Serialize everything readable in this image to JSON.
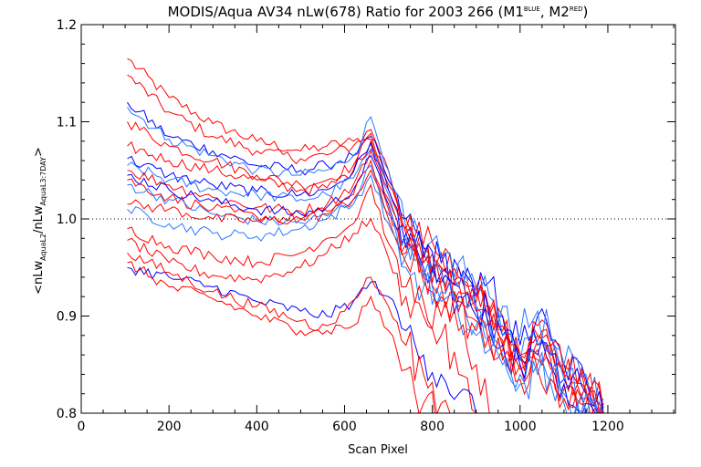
{
  "chart_data": {
    "type": "line",
    "title": {
      "main": "MODIS/Aqua AV34 nLw(678) Ratio for 2003 266 (M1",
      "sup1": "BLUE",
      "mid": ", M2",
      "sup2": "RED",
      "end": ")"
    },
    "xlabel": "Scan Pixel",
    "ylabel": {
      "open": "<nLw",
      "sub1": "AquaL2",
      "mid": "/nLw",
      "sub2": "AquaL3:7DAY",
      "close": ">"
    },
    "xlim": [
      0,
      1354
    ],
    "ylim": [
      0.8,
      1.2
    ],
    "x_ticks": [
      "0",
      "200",
      "400",
      "600",
      "800",
      "1000",
      "1200"
    ],
    "y_ticks": [
      "0.8",
      "0.9",
      "1.0",
      "1.1",
      "1.2"
    ],
    "reference_line": {
      "y": 1.0,
      "style": "dotted"
    },
    "colors": {
      "blue": "#0000ff",
      "lightblue": "#2878ff",
      "red": "#ff0000",
      "axis": "#000000"
    },
    "series": [
      {
        "color": "red",
        "x": [
          105,
          200,
          300,
          400,
          500,
          560,
          620,
          660,
          700,
          740,
          780,
          820,
          860,
          900,
          930,
          960,
          1000,
          1040,
          1070,
          1100,
          1150,
          1190
        ],
        "y": [
          1.165,
          1.125,
          1.098,
          1.08,
          1.07,
          1.075,
          1.08,
          1.082,
          1.04,
          1.0,
          0.97,
          0.965,
          0.95,
          0.93,
          0.905,
          0.87,
          0.86,
          0.88,
          0.87,
          0.84,
          0.82,
          0.8
        ]
      },
      {
        "color": "red",
        "x": [
          105,
          200,
          300,
          400,
          500,
          560,
          620,
          660,
          700,
          740,
          780,
          820,
          860,
          900,
          930,
          960,
          1000,
          1040,
          1070,
          1100,
          1150,
          1190
        ],
        "y": [
          1.148,
          1.11,
          1.085,
          1.07,
          1.062,
          1.066,
          1.075,
          1.092,
          1.05,
          0.99,
          0.975,
          0.96,
          0.94,
          0.93,
          0.91,
          0.9,
          0.86,
          0.89,
          0.88,
          0.85,
          0.83,
          0.805
        ]
      },
      {
        "color": "blue",
        "x": [
          105,
          200,
          300,
          400,
          500,
          560,
          620,
          660,
          700,
          740,
          780,
          820,
          860,
          900,
          930,
          960,
          1000,
          1040,
          1070,
          1100,
          1150,
          1190
        ],
        "y": [
          1.12,
          1.085,
          1.07,
          1.055,
          1.05,
          1.055,
          1.065,
          1.085,
          1.04,
          1.0,
          0.97,
          0.955,
          0.95,
          0.92,
          0.935,
          0.9,
          0.87,
          0.9,
          0.875,
          0.85,
          0.835,
          0.81
        ]
      },
      {
        "color": "lightblue",
        "x": [
          105,
          200,
          300,
          400,
          500,
          560,
          620,
          660,
          700,
          740,
          780,
          820,
          860,
          900,
          930,
          960,
          1000,
          1040,
          1070,
          1100,
          1150,
          1190
        ],
        "y": [
          1.115,
          1.082,
          1.065,
          1.05,
          1.045,
          1.05,
          1.065,
          1.105,
          1.05,
          0.99,
          0.965,
          0.96,
          0.955,
          0.93,
          0.92,
          0.91,
          0.88,
          0.905,
          0.88,
          0.85,
          0.84,
          0.815
        ]
      },
      {
        "color": "red",
        "x": [
          105,
          200,
          300,
          400,
          500,
          560,
          620,
          660,
          700,
          740,
          780,
          820,
          860,
          900,
          930,
          960,
          1000,
          1040,
          1070,
          1100,
          1150,
          1190
        ],
        "y": [
          1.1,
          1.075,
          1.06,
          1.045,
          1.035,
          1.04,
          1.055,
          1.088,
          1.035,
          0.99,
          0.965,
          0.95,
          0.94,
          0.92,
          0.905,
          0.89,
          0.86,
          0.88,
          0.87,
          0.84,
          0.83,
          0.8
        ]
      },
      {
        "color": "red",
        "x": [
          105,
          200,
          300,
          400,
          500,
          560,
          620,
          660,
          700,
          740,
          780,
          820,
          860,
          900,
          930,
          960,
          1000,
          1040,
          1070,
          1100,
          1150,
          1190
        ],
        "y": [
          1.075,
          1.06,
          1.05,
          1.04,
          1.03,
          1.032,
          1.05,
          1.08,
          1.03,
          0.985,
          0.96,
          0.95,
          0.935,
          0.915,
          0.9,
          0.885,
          0.86,
          0.875,
          0.865,
          0.84,
          0.825,
          0.8
        ]
      },
      {
        "color": "blue",
        "x": [
          105,
          200,
          300,
          400,
          500,
          560,
          620,
          660,
          700,
          740,
          780,
          820,
          860,
          900,
          930,
          960,
          1000,
          1040,
          1070,
          1100,
          1150,
          1190
        ],
        "y": [
          1.062,
          1.045,
          1.035,
          1.028,
          1.025,
          1.03,
          1.048,
          1.078,
          1.03,
          0.985,
          0.96,
          0.945,
          0.93,
          0.91,
          0.9,
          0.88,
          0.855,
          0.87,
          0.86,
          0.835,
          0.82,
          0.8
        ]
      },
      {
        "color": "lightblue",
        "x": [
          105,
          200,
          300,
          400,
          500,
          560,
          620,
          660,
          700,
          740,
          780,
          820,
          860,
          900,
          930,
          960,
          1000,
          1040,
          1070,
          1100,
          1150,
          1190
        ],
        "y": [
          1.055,
          1.04,
          1.03,
          1.025,
          1.02,
          1.025,
          1.042,
          1.072,
          1.025,
          0.98,
          0.955,
          0.945,
          0.93,
          0.91,
          0.895,
          0.88,
          0.855,
          0.87,
          0.86,
          0.835,
          0.82,
          0.8
        ]
      },
      {
        "color": "red",
        "x": [
          105,
          200,
          300,
          400,
          500,
          560,
          620,
          660,
          700,
          740,
          780,
          820,
          860,
          900,
          930,
          960,
          1000,
          1040,
          1070,
          1100,
          1150,
          1190
        ],
        "y": [
          1.05,
          1.035,
          1.022,
          1.012,
          1.008,
          1.015,
          1.035,
          1.07,
          1.02,
          0.975,
          0.955,
          0.94,
          0.925,
          0.905,
          0.89,
          0.875,
          0.85,
          0.865,
          0.855,
          0.83,
          0.815,
          0.8
        ]
      },
      {
        "color": "blue",
        "x": [
          105,
          200,
          300,
          400,
          500,
          560,
          620,
          660,
          700,
          740,
          780,
          820,
          860,
          900,
          930,
          960,
          1000,
          1040,
          1070,
          1100,
          1150,
          1190
        ],
        "y": [
          1.045,
          1.03,
          1.018,
          1.01,
          1.005,
          1.012,
          1.03,
          1.065,
          1.015,
          0.97,
          0.95,
          0.935,
          0.92,
          0.9,
          0.885,
          0.87,
          0.85,
          0.86,
          0.85,
          0.83,
          0.81,
          0.8
        ]
      },
      {
        "color": "red",
        "x": [
          105,
          200,
          300,
          400,
          500,
          560,
          620,
          660,
          700,
          740,
          780,
          820,
          860,
          900,
          930,
          960,
          1000,
          1040,
          1070,
          1100,
          1150,
          1190
        ],
        "y": [
          1.04,
          1.022,
          1.01,
          1.002,
          1.0,
          1.008,
          1.025,
          1.06,
          1.01,
          0.965,
          0.945,
          0.93,
          0.915,
          0.895,
          0.88,
          0.865,
          0.845,
          0.855,
          0.845,
          0.825,
          0.81,
          0.8
        ]
      },
      {
        "color": "lightblue",
        "x": [
          105,
          200,
          300,
          400,
          500,
          560,
          620,
          660,
          700,
          740,
          780,
          820,
          860,
          900,
          930,
          960,
          1000,
          1040,
          1070,
          1100,
          1150,
          1190
        ],
        "y": [
          1.035,
          1.02,
          1.005,
          0.998,
          0.996,
          1.003,
          1.02,
          1.055,
          1.005,
          0.962,
          0.94,
          0.925,
          0.91,
          0.89,
          0.875,
          0.86,
          0.84,
          0.85,
          0.84,
          0.82,
          0.805,
          0.8
        ]
      },
      {
        "color": "red",
        "x": [
          105,
          200,
          300,
          400,
          500,
          560,
          620,
          660,
          700,
          740,
          780,
          820,
          860,
          900,
          930,
          960,
          1000,
          1040,
          1070,
          1100,
          1150,
          1190
        ],
        "y": [
          1.015,
          1.01,
          1.0,
          0.998,
          1.0,
          1.005,
          1.02,
          1.05,
          1.0,
          0.955,
          0.935,
          0.92,
          0.905,
          0.885,
          0.87,
          0.855,
          0.835,
          0.845,
          0.835,
          0.815,
          0.8,
          0.8
        ]
      },
      {
        "color": "lightblue",
        "x": [
          105,
          200,
          300,
          400,
          500,
          560,
          620,
          660,
          700,
          740,
          780,
          820,
          860,
          900,
          930,
          960,
          1000,
          1040,
          1070,
          1100,
          1150,
          1190
        ],
        "y": [
          1.01,
          0.995,
          0.985,
          0.982,
          0.99,
          1.0,
          1.015,
          1.045,
          0.995,
          0.95,
          0.93,
          0.915,
          0.9,
          0.88,
          0.865,
          0.85,
          0.83,
          0.84,
          0.83,
          0.81,
          0.8,
          0.8
        ]
      },
      {
        "color": "red",
        "x": [
          105,
          200,
          300,
          400,
          500,
          560,
          620,
          660,
          700,
          740,
          780,
          820,
          860,
          900,
          930
        ],
        "y": [
          0.99,
          0.972,
          0.962,
          0.955,
          0.965,
          0.98,
          0.995,
          1.035,
          0.975,
          0.93,
          0.915,
          0.9,
          0.885,
          0.85,
          0.8
        ]
      },
      {
        "color": "red",
        "x": [
          105,
          200,
          300,
          400,
          500,
          560,
          620,
          660,
          700,
          740,
          780,
          820,
          860,
          900
        ],
        "y": [
          0.978,
          0.955,
          0.942,
          0.938,
          0.95,
          0.965,
          0.985,
          1.0,
          0.96,
          0.92,
          0.9,
          0.88,
          0.84,
          0.8
        ]
      },
      {
        "color": "blue",
        "x": [
          105,
          200,
          300,
          400,
          500,
          560,
          620,
          660,
          700,
          740,
          780,
          820,
          860,
          900
        ],
        "y": [
          0.95,
          0.94,
          0.93,
          0.915,
          0.905,
          0.9,
          0.915,
          0.935,
          0.92,
          0.885,
          0.86,
          0.84,
          0.82,
          0.8
        ]
      },
      {
        "color": "red",
        "x": [
          105,
          200,
          300,
          400,
          500,
          560,
          600,
          660,
          700,
          740,
          780,
          820,
          860
        ],
        "y": [
          0.955,
          0.93,
          0.918,
          0.9,
          0.885,
          0.89,
          0.905,
          0.94,
          0.91,
          0.87,
          0.84,
          0.81,
          0.8
        ]
      },
      {
        "color": "red",
        "x": [
          105,
          200,
          300,
          400,
          500,
          560,
          620,
          660,
          700,
          740,
          780,
          820
        ],
        "y": [
          0.965,
          0.945,
          0.925,
          0.91,
          0.895,
          0.885,
          0.89,
          0.92,
          0.885,
          0.845,
          0.81,
          0.8
        ]
      }
    ]
  }
}
